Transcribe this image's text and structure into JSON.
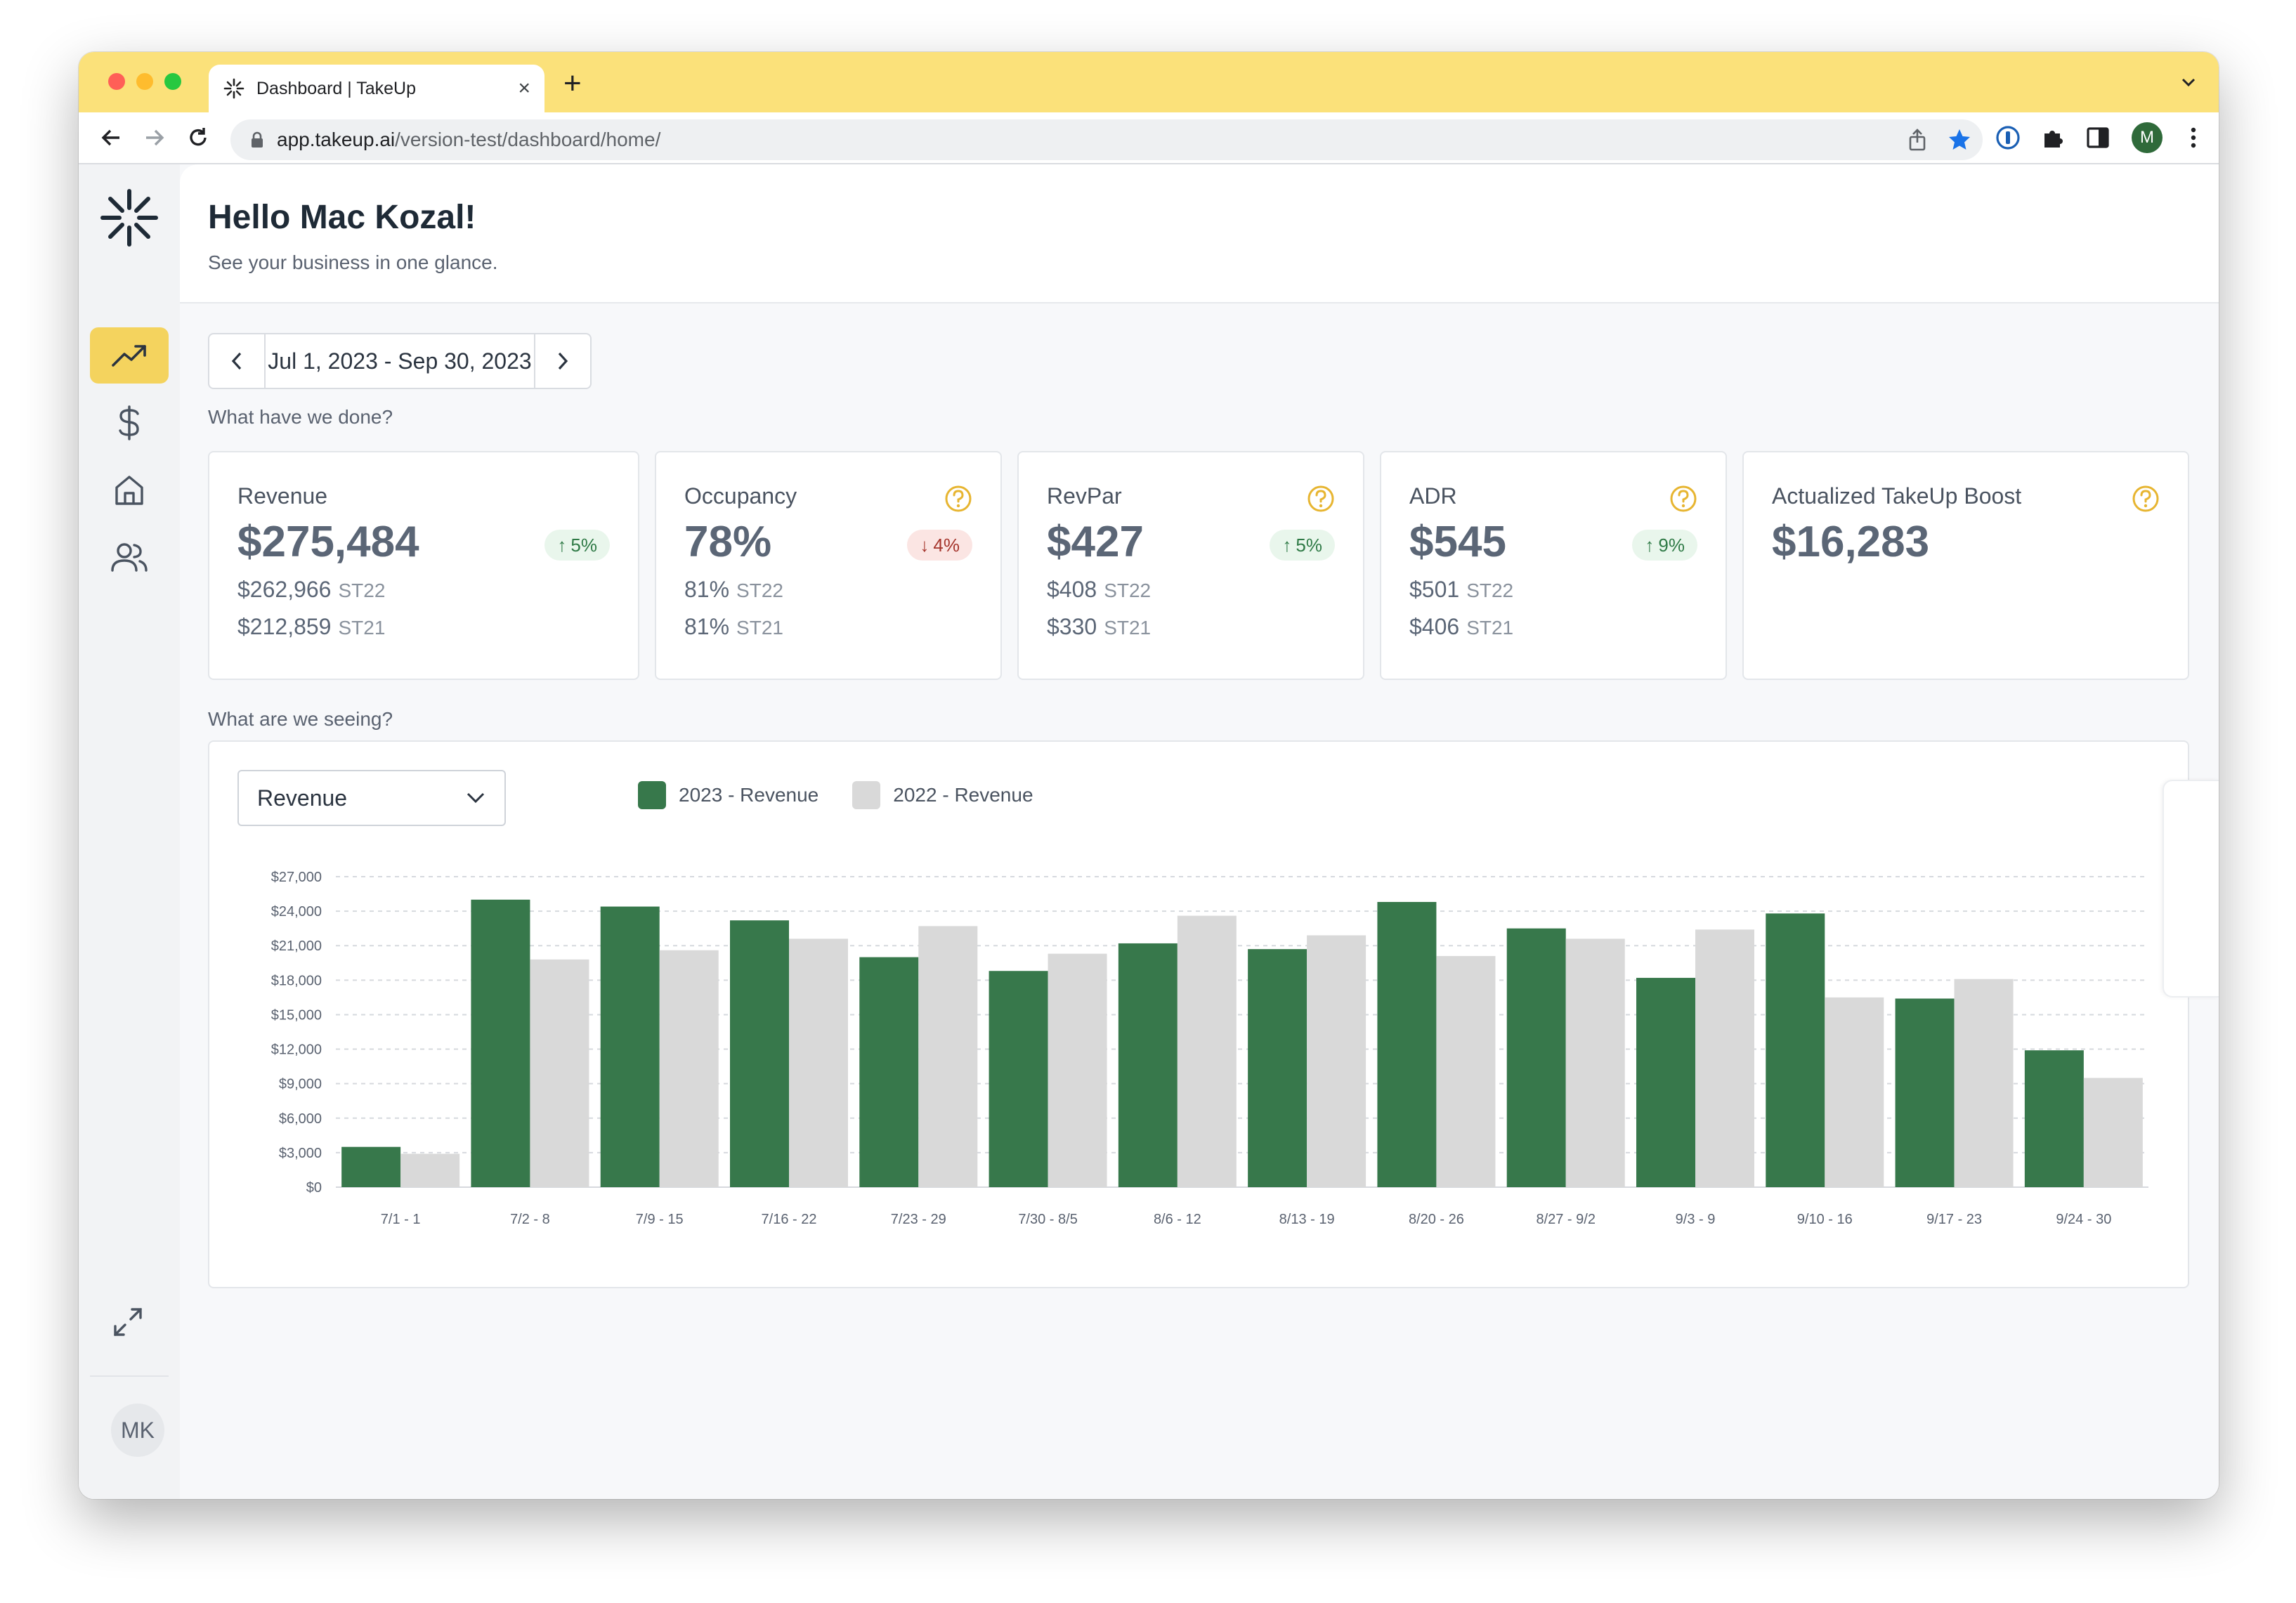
{
  "browser": {
    "tab_title": "Dashboard | TakeUp",
    "url_host": "app.takeup.ai",
    "url_path": "/version-test/dashboard/home/",
    "profile_initial": "M"
  },
  "sidebar": {
    "items": [
      {
        "icon": "trend-up-icon",
        "active": true
      },
      {
        "icon": "dollar-icon",
        "active": false
      },
      {
        "icon": "home-icon",
        "active": false
      },
      {
        "icon": "users-icon",
        "active": false
      }
    ],
    "user_initials": "MK"
  },
  "header": {
    "greeting": "Hello Mac Kozal!",
    "subtitle": "See your business in one glance."
  },
  "date_range": {
    "label": "Jul 1, 2023 - Sep 30, 2023"
  },
  "sections": {
    "done": "What have we done?",
    "seeing": "What are we seeing?"
  },
  "kpis": [
    {
      "title": "Revenue",
      "value": "$275,484",
      "help": false,
      "badge": "5%",
      "direction": "up",
      "rows": [
        {
          "value": "$262,966",
          "tag": "ST22"
        },
        {
          "value": "$212,859",
          "tag": "ST21"
        }
      ]
    },
    {
      "title": "Occupancy",
      "value": "78%",
      "help": true,
      "badge": "4%",
      "direction": "down",
      "rows": [
        {
          "value": "81%",
          "tag": "ST22"
        },
        {
          "value": "81%",
          "tag": "ST21"
        }
      ]
    },
    {
      "title": "RevPar",
      "value": "$427",
      "help": true,
      "badge": "5%",
      "direction": "up",
      "rows": [
        {
          "value": "$408",
          "tag": "ST22"
        },
        {
          "value": "$330",
          "tag": "ST21"
        }
      ]
    },
    {
      "title": "ADR",
      "value": "$545",
      "help": true,
      "badge": "9%",
      "direction": "up",
      "rows": [
        {
          "value": "$501",
          "tag": "ST22"
        },
        {
          "value": "$406",
          "tag": "ST21"
        }
      ]
    },
    {
      "title": "Actualized TakeUp Boost",
      "value": "$16,283",
      "help": true,
      "badge": null,
      "direction": null,
      "rows": []
    }
  ],
  "chart_controls": {
    "metric_select": "Revenue",
    "legend": [
      "2023 - Revenue",
      "2022 - Revenue"
    ]
  },
  "colors": {
    "accent": "#f4d35e",
    "series_2023": "#37784b",
    "series_2022": "#d9d9d9",
    "up": "#2f7a46",
    "down": "#a5352c"
  },
  "chart_data": {
    "type": "bar",
    "categories": [
      "7/1 - 1",
      "7/2 - 8",
      "7/9 - 15",
      "7/16 - 22",
      "7/23 - 29",
      "7/30 - 8/5",
      "8/6 - 12",
      "8/13 - 19",
      "8/20 - 26",
      "8/27 - 9/2",
      "9/3 - 9",
      "9/10 - 16",
      "9/17 - 23",
      "9/24 - 30"
    ],
    "series": [
      {
        "name": "2023 - Revenue",
        "values": [
          3500,
          25000,
          24400,
          23200,
          20000,
          18800,
          21200,
          20700,
          24800,
          22500,
          18200,
          23800,
          16400,
          11900
        ]
      },
      {
        "name": "2022 - Revenue",
        "values": [
          2900,
          19800,
          20600,
          21600,
          22700,
          20300,
          23600,
          21900,
          20100,
          21600,
          22400,
          16500,
          18100,
          9500
        ]
      }
    ],
    "ylim": [
      0,
      27000
    ],
    "yticks": [
      "$0",
      "$3,000",
      "$6,000",
      "$9,000",
      "$12,000",
      "$15,000",
      "$18,000",
      "$21,000",
      "$24,000",
      "$27,000"
    ],
    "grid": true,
    "legend_position": "top-left"
  }
}
